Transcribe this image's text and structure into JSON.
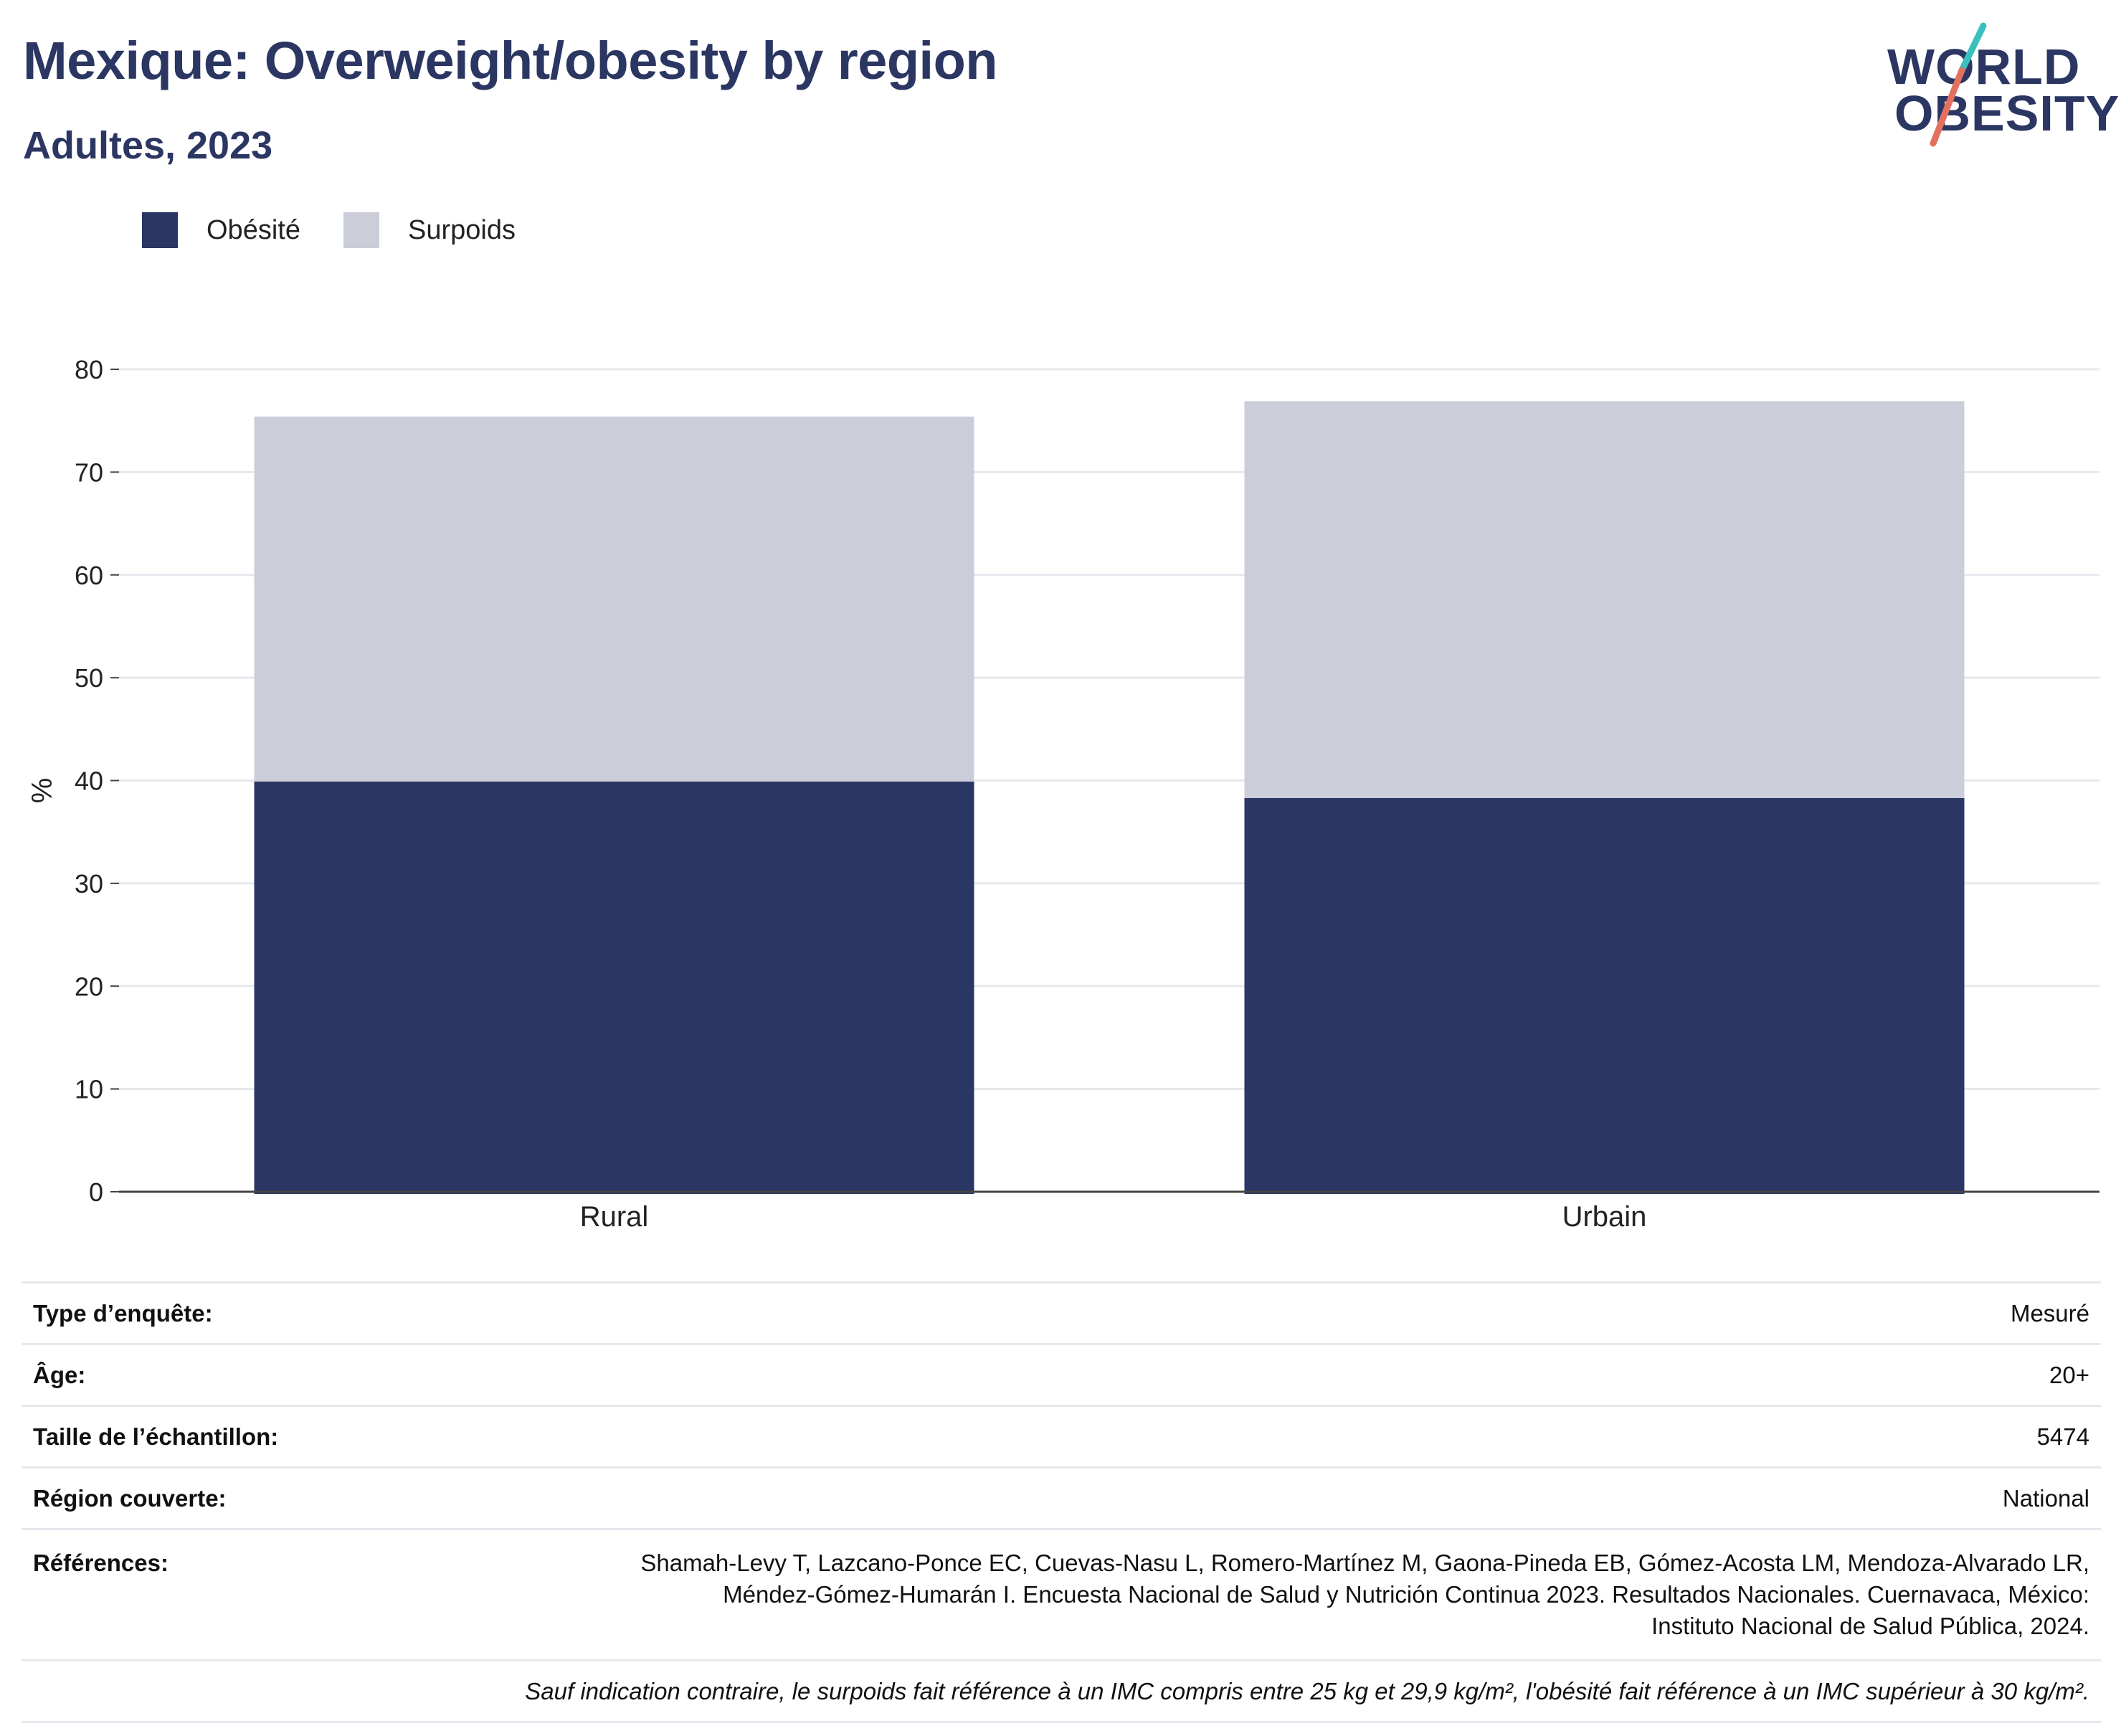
{
  "header": {
    "title": "Mexique: Overweight/obesity by region",
    "subtitle": "Adultes, 2023"
  },
  "logo": {
    "line1": "WORLD",
    "line2": "OBESITY",
    "colors": {
      "text": "#2b3662",
      "slash_top": "#3bbfbf",
      "slash_bottom": "#e4705f"
    }
  },
  "chart_data": {
    "type": "bar",
    "stacked": true,
    "categories": [
      "Rural",
      "Urbain"
    ],
    "series": [
      {
        "name": "Obésité",
        "values": [
          39.9,
          38.3
        ],
        "color": "#2a3663"
      },
      {
        "name": "Surpoids",
        "values": [
          35.5,
          38.6
        ],
        "color": "#cbcdd8"
      }
    ],
    "ylabel": "%",
    "ylim": [
      0,
      80
    ],
    "yticks": [
      0,
      10,
      20,
      30,
      40,
      50,
      60,
      70,
      80
    ],
    "grid": true,
    "legend_position": "top-left"
  },
  "info": {
    "rows": [
      {
        "label": "Type d’enquête:",
        "value": "Mesuré"
      },
      {
        "label": "Âge:",
        "value": "20+"
      },
      {
        "label": "Taille de l’échantillon:",
        "value": "5474"
      },
      {
        "label": "Région couverte:",
        "value": "National"
      }
    ],
    "references_label": "Références:",
    "references_lines": [
      "Shamah-Levy T, Lazcano-Ponce EC, Cuevas-Nasu L, Romero-Martínez M, Gaona-Pineda EB, Gómez-Acosta LM, Mendoza-Alvarado LR,",
      "Méndez-Gómez-Humarán I. Encuesta Nacional de Salud y Nutrición Continua 2023. Resultados Nacionales. Cuernavaca, México:",
      "Instituto Nacional de Salud Pública, 2024."
    ],
    "note": "Sauf indication contraire, le surpoids fait référence à un IMC compris entre 25 kg et 29,9 kg/m², l'obésité fait référence à un IMC supérieur à 30 kg/m²."
  }
}
